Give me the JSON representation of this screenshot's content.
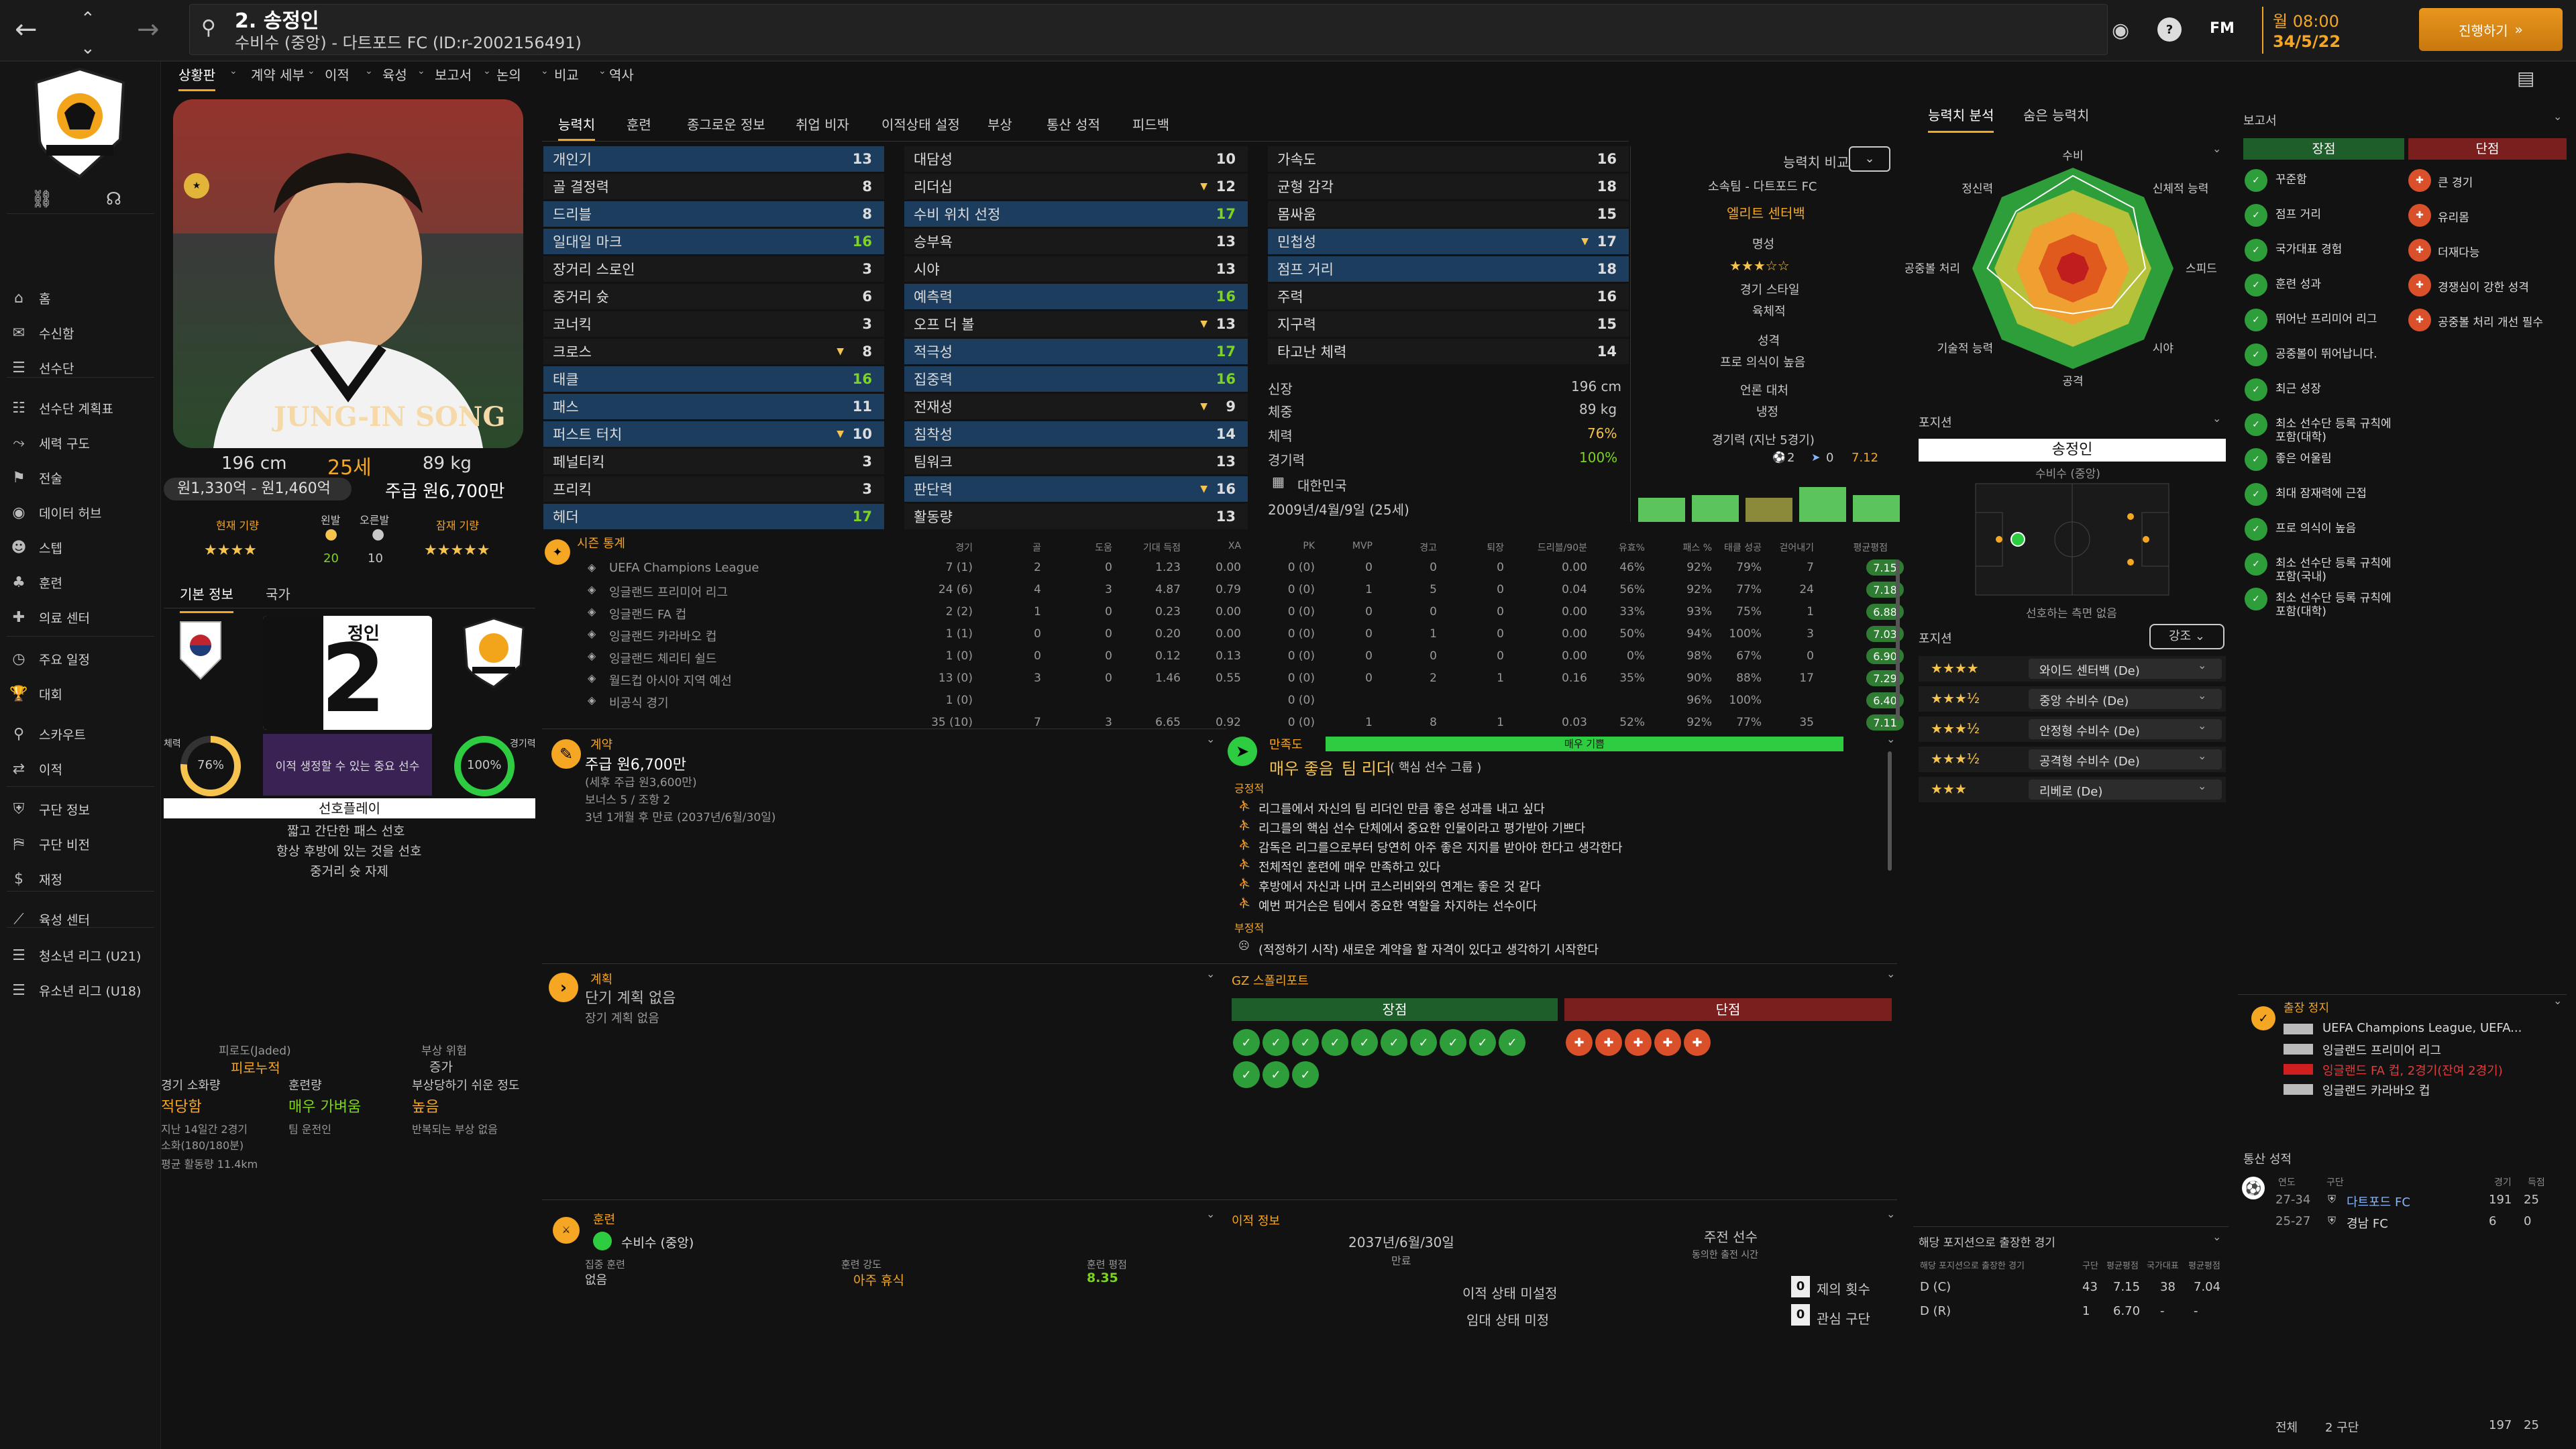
{
  "topbar": {
    "player_title": "2. 송정인",
    "player_subtitle": "수비수 (중앙) - 다트포드 FC (ID:r-2002156491)",
    "time": "월 08:00",
    "date": "34/5/22",
    "continue_label": "진행하기",
    "fm_label": "FM",
    "help_label": "?"
  },
  "subnav": [
    "상황판",
    "계약 세부",
    "이적",
    "육성",
    "보고서",
    "논의",
    "비교",
    "역사"
  ],
  "sidebar": {
    "items": [
      "홈",
      "수신함",
      "선수단",
      "선수단 계획표",
      "세력 구도",
      "전술",
      "데이터 허브",
      "스텝",
      "훈련",
      "의료 센터",
      "주요 일정",
      "대회",
      "스카우트",
      "이적",
      "구단 정보",
      "구단 비전",
      "재정",
      "육성 센터",
      "청소년 리그 (U21)",
      "유소년 리그 (U18)"
    ]
  },
  "profile": {
    "name_on_photo": "JUNG-IN SONG",
    "height": "196 cm",
    "age": "25세",
    "weight": "89 kg",
    "value": "원1,330억 - 원1,460억",
    "wage": "주급 원6,700만",
    "current_ability_label": "현재 기량",
    "potential_ability_label": "잠재 기량",
    "left_label": "왼발",
    "right_label": "오른발",
    "left_value": "20",
    "right_value": "10",
    "tabs": [
      "기본 정보",
      "국가"
    ],
    "shirt_name": "정인",
    "shirt_number": "2",
    "fitness_label": "체력",
    "fitness": "76%",
    "match_label": "경기력",
    "match": "100%",
    "transfer_note": "이적 생정할 수 있는 중요 선수",
    "preference_title": "선호플레이",
    "preferences": [
      "짧고 간단한 패스 선호",
      "항상 후방에 있는 것을 선호",
      "중거리 슛 자제"
    ],
    "fatigue_title": "피로도(Jaded)",
    "fatigue_value": "피로누적",
    "injury_risk_title": "부상 위험",
    "injury_risk_value": "증가",
    "match_load_label": "경기 소화량",
    "match_load_value": "적당함",
    "training_label": "훈련량",
    "training_value": "매우 가벼움",
    "injury_prone_label": "부상당하기 쉬운 정도",
    "injury_prone_value": "높음",
    "last14": "지난 14일간 2경기",
    "minutes": "소화(180/180분)",
    "avg_distance": "평균 활동량 11.4km",
    "team_plan": "팀 운전인",
    "repeated_injury": "반복되는 부상 없음"
  },
  "attr_tabs": [
    "능력치",
    "훈련",
    "종그로운 정보",
    "취업 비자",
    "이적상태 설정",
    "부상",
    "통산 성적",
    "피드백"
  ],
  "technical": [
    {
      "k": "개인기",
      "v": "13",
      "blue": true
    },
    {
      "k": "골 결정력",
      "v": "8",
      "blue": false
    },
    {
      "k": "드리블",
      "v": "8",
      "blue": true
    },
    {
      "k": "일대일 마크",
      "v": "16",
      "blue": true,
      "g": true
    },
    {
      "k": "장거리 스로인",
      "v": "3",
      "blue": false
    },
    {
      "k": "중거리 슛",
      "v": "6",
      "blue": false
    },
    {
      "k": "코너킥",
      "v": "3",
      "blue": false
    },
    {
      "k": "크로스",
      "v": "8",
      "blue": false,
      "tri": true
    },
    {
      "k": "태클",
      "v": "16",
      "blue": true,
      "g": true
    },
    {
      "k": "패스",
      "v": "11",
      "blue": true
    },
    {
      "k": "퍼스트 터치",
      "v": "10",
      "blue": true,
      "tri": true
    },
    {
      "k": "페널티킥",
      "v": "3",
      "blue": false
    },
    {
      "k": "프리킥",
      "v": "3",
      "blue": false
    },
    {
      "k": "헤더",
      "v": "17",
      "blue": true,
      "g": true
    }
  ],
  "mental": [
    {
      "k": "대담성",
      "v": "10",
      "blue": false
    },
    {
      "k": "리더십",
      "v": "12",
      "blue": false,
      "tri": true
    },
    {
      "k": "수비 위치 선정",
      "v": "17",
      "blue": true,
      "g": true
    },
    {
      "k": "승부욕",
      "v": "13",
      "blue": false
    },
    {
      "k": "시야",
      "v": "13",
      "blue": false
    },
    {
      "k": "예측력",
      "v": "16",
      "blue": true,
      "g": true
    },
    {
      "k": "오프 더 볼",
      "v": "13",
      "blue": false,
      "tri": true
    },
    {
      "k": "적극성",
      "v": "17",
      "blue": true,
      "g": true
    },
    {
      "k": "집중력",
      "v": "16",
      "blue": true,
      "g": true
    },
    {
      "k": "전재성",
      "v": "9",
      "blue": false,
      "tri": true
    },
    {
      "k": "침착성",
      "v": "14",
      "blue": true
    },
    {
      "k": "팀워크",
      "v": "13",
      "blue": false
    },
    {
      "k": "판단력",
      "v": "16",
      "blue": true,
      "tri": true
    },
    {
      "k": "활동량",
      "v": "13",
      "blue": false
    }
  ],
  "physical": [
    {
      "k": "가속도",
      "v": "16",
      "blue": false
    },
    {
      "k": "균형 감각",
      "v": "18",
      "blue": false
    },
    {
      "k": "몸싸움",
      "v": "15",
      "blue": false
    },
    {
      "k": "민첩성",
      "v": "17",
      "blue": true,
      "tri": true
    },
    {
      "k": "점프 거리",
      "v": "18",
      "blue": true
    },
    {
      "k": "주력",
      "v": "16",
      "blue": false
    },
    {
      "k": "지구력",
      "v": "15",
      "blue": false
    },
    {
      "k": "타고난 체력",
      "v": "14",
      "blue": false
    }
  ],
  "misc": {
    "height_label": "신장",
    "height": "196 cm",
    "weight_label": "체중",
    "weight": "89 kg",
    "fitness_label": "체력",
    "fitness": "76%",
    "match_label": "경기력",
    "match": "100%",
    "nation": "대한민국",
    "dob": "2009년/4월/9일 (25세)"
  },
  "compare": {
    "title": "능력치 비교",
    "club": "소속팀 - 다트포드 FC",
    "role": "엘리트 센터백",
    "rep_label": "명성",
    "style_label": "경기 스타일",
    "style": "육체적",
    "pers_label": "성격",
    "pers": "프로 의식이 높음",
    "media_label": "언론 대처",
    "media": "냉정",
    "form_label": "경기력 (지난 5경기)",
    "goals": "2",
    "assists": "0",
    "avg": "7.12"
  },
  "form_bars": [
    0.45,
    0.5,
    0.45,
    0.65,
    0.5
  ],
  "stats": {
    "title": "시즌 통계",
    "headers": [
      "경기",
      "골",
      "도움",
      "기대 득점",
      "XA",
      "PK",
      "MVP",
      "경고",
      "퇴장",
      "드리블/90분",
      "유효%",
      "패스 %",
      "태클 성공",
      "걷어내기",
      "평균평점"
    ],
    "rows": [
      {
        "comp": "UEFA Champions League",
        "v": [
          "7 (1)",
          "2",
          "0",
          "1.23",
          "0.00",
          "0 (0)",
          "0",
          "0",
          "0",
          "0.00",
          "46%",
          "92%",
          "79%",
          "7"
        ],
        "r": "7.15"
      },
      {
        "comp": "잉글랜드 프리미어 리그",
        "v": [
          "24 (6)",
          "4",
          "3",
          "4.87",
          "0.79",
          "0 (0)",
          "1",
          "5",
          "0",
          "0.04",
          "56%",
          "92%",
          "77%",
          "24"
        ],
        "r": "7.18"
      },
      {
        "comp": "잉글랜드 FA 컵",
        "v": [
          "2 (2)",
          "1",
          "0",
          "0.23",
          "0.00",
          "0 (0)",
          "0",
          "0",
          "0",
          "0.00",
          "33%",
          "93%",
          "75%",
          "1"
        ],
        "r": "6.88"
      },
      {
        "comp": "잉글랜드 카라바오 컵",
        "v": [
          "1 (1)",
          "0",
          "0",
          "0.20",
          "0.00",
          "0 (0)",
          "0",
          "1",
          "0",
          "0.00",
          "50%",
          "94%",
          "100%",
          "3"
        ],
        "r": "7.03"
      },
      {
        "comp": "잉글랜드 체리티 쉴드",
        "v": [
          "1 (0)",
          "0",
          "0",
          "0.12",
          "0.13",
          "0 (0)",
          "0",
          "0",
          "0",
          "0.00",
          "0%",
          "98%",
          "67%",
          "0"
        ],
        "r": "6.90"
      },
      {
        "comp": "월드컵 아시아 지역 예선",
        "v": [
          "13 (0)",
          "3",
          "0",
          "1.46",
          "0.55",
          "0 (0)",
          "0",
          "2",
          "1",
          "0.16",
          "35%",
          "90%",
          "88%",
          "17"
        ],
        "r": "7.29"
      },
      {
        "comp": "비공식 경기",
        "v": [
          "1 (0)",
          "",
          "",
          "",
          "",
          "0 (0)",
          "",
          "",
          "",
          "",
          "",
          "96%",
          "100%",
          ""
        ],
        "r": "6.40"
      },
      {
        "comp": "",
        "v": [
          "35 (10)",
          "7",
          "3",
          "6.65",
          "0.92",
          "0 (0)",
          "1",
          "8",
          "1",
          "0.03",
          "52%",
          "92%",
          "77%",
          "35"
        ],
        "r": "7.11"
      }
    ]
  },
  "contract": {
    "title": "계약",
    "wage": "주급 원6,700만",
    "tax": "(세후 주급 원3,600만)",
    "bonus": "보너스 5 / 조항 2",
    "expiry": "3년 1개월 후 만료 (2037년/6월/30일)"
  },
  "happiness": {
    "title": "만족도",
    "bar": "매우 기쁨",
    "level": "매우 좋음",
    "role": "팀 리더",
    "role_sub": "( 핵심 선수 그룹 )",
    "pos_label": "긍정적",
    "positives": [
      "리그를에서 자신의 팀 리더인 만큼 좋은 성과를 내고 싶다",
      "리그를의 핵심 선수 단체에서 중요한 인물이라고 평가받아 기쁘다",
      "감독은 리그를으로부터 당연히 아주 좋은 지지를 받아야 한다고 생각한다",
      "전체적인 훈련에 매우 만족하고 있다",
      "후방에서 자신과 나머 코스리비와의 연계는 좋은 것 같다",
      "예번 퍼거슨은 팀에서 중요한 역할을 차지하는 선수이다"
    ],
    "neg_label": "부정적",
    "negatives": [
      "(적정하기 시작) 새로운 계약을 할 자격이 있다고 생각하기 시작한다"
    ]
  },
  "plans": {
    "title": "계획",
    "none": "단기 계획 없음",
    "long": "장기 계획 없음"
  },
  "scout": {
    "title": "GZ 스폴리포트",
    "strengths_label": "장점",
    "weaknesses_label": "단점"
  },
  "training": {
    "title": "훈련",
    "position": "수비수 (중앙)",
    "focus_label": "집중 훈련",
    "focus": "없음",
    "intensity_label": "훈련 강도",
    "intensity": "아주 휴식",
    "rating_label": "훈련 평점",
    "rating": "8.35"
  },
  "transfer": {
    "title": "이적 정보",
    "expiry_date": "2037년/6월/30일",
    "expiry_label": "만료",
    "status_label": "주전 선수",
    "status_sub": "동의한 출전 시간",
    "not_set": "이적 상태 미설정",
    "loan_not_set": "임대 상태 미정",
    "offers": "0",
    "offers_label": "제의 횟수",
    "interest": "0",
    "interest_label": "관심 구단"
  },
  "radar": {
    "tabs": [
      "능력치 분석",
      "숨은 능력치"
    ],
    "labels": [
      "수비",
      "신체적 능력",
      "스피드",
      "시야",
      "공격",
      "기술적 능력",
      "공중볼 처리",
      "정신력"
    ],
    "vals": [
      0.92,
      0.85,
      0.72,
      0.55,
      0.45,
      0.55,
      0.85,
      0.8
    ]
  },
  "position": {
    "title": "포지션",
    "name": "송정인",
    "pos": "수비수 (중앙)",
    "note": "선호하는 측면 없음",
    "roles_title": "포지션",
    "emphasis": "강조",
    "roles": [
      {
        "stars": "★★★★",
        "r": "와이드 센터백 (De)",
        "hl": true
      },
      {
        "stars": "★★★½",
        "r": "중앙 수비수 (De)"
      },
      {
        "stars": "★★★½",
        "r": "안정형 수비수 (De)"
      },
      {
        "stars": "★★★½",
        "r": "공격형 수비수 (De)"
      },
      {
        "stars": "★★★",
        "r": "리베로 (De)"
      }
    ]
  },
  "report": {
    "title": "보고서",
    "strengths_label": "장점",
    "weaknesses_label": "단점",
    "strengths": [
      "꾸준함",
      "점프 거리",
      "국가대표 경험",
      "훈련 성과",
      "뛰어난 프리미어 리그",
      "공중볼이 뛰어납니다.",
      "최근 성장",
      "최소 선수단 등록 규칙에 포함(대학)",
      "좋은 어울림",
      "최대 잠재력에 근접",
      "프로 의식이 높음",
      "최소 선수단 등록 규칙에 포함(국내)",
      "최소 선수단 등록 규칙에 포함(대학)"
    ],
    "weaknesses": [
      "큰 경기",
      "유리몸",
      "더재다능",
      "경쟁심이 강한 성격",
      "공중볼 처리 개선 필수"
    ]
  },
  "suspension": {
    "title": "출장 정지",
    "items": [
      "UEFA Champions League, UEFA...",
      "잉글랜드 프리미어 리그",
      "잉글랜드 FA 컵, 2경기(잔여 2경기)",
      "잉글랜드 카라바오 컵"
    ]
  },
  "career": {
    "title": "통산 성적",
    "headers": [
      "연도",
      "구단",
      "경기",
      "득점"
    ],
    "rows": [
      {
        "y": "27-34",
        "club": "다트포드 FC",
        "g": "191",
        "s": "25"
      },
      {
        "y": "25-27",
        "club": "경남 FC",
        "g": "6",
        "s": "0"
      }
    ],
    "total_label": "전체",
    "total_clubs": "2 구단",
    "total_g": "197",
    "total_s": "25"
  },
  "pos_apps": {
    "title": "해당 포지션으로 출장한 경기",
    "headers": [
      "해당 포지션으로 출장한 경기",
      "구단",
      "평균평점",
      "국가대표",
      "평균평점"
    ],
    "rows": [
      {
        "p": "D (C)",
        "a": "43",
        "b": "7.15",
        "c": "38",
        "d": "7.04"
      },
      {
        "p": "D (R)",
        "a": "1",
        "b": "6.70",
        "c": "-",
        "d": "-"
      }
    ]
  }
}
